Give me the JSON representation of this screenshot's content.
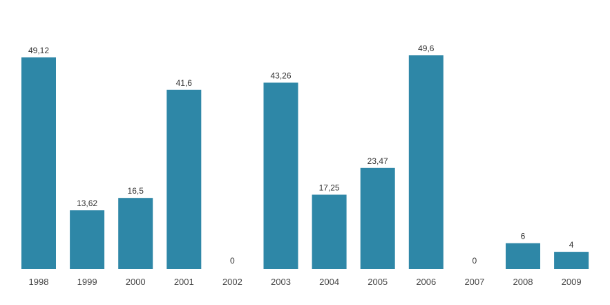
{
  "chart_data": {
    "type": "bar",
    "categories": [
      "1998",
      "1999",
      "2000",
      "2001",
      "2002",
      "2003",
      "2004",
      "2005",
      "2006",
      "2007",
      "2008",
      "2009"
    ],
    "values": [
      49.12,
      13.62,
      16.5,
      41.6,
      0,
      43.26,
      17.25,
      23.47,
      49.6,
      0,
      6,
      4
    ],
    "value_labels": [
      "49,12",
      "13,62",
      "16,5",
      "41,6",
      "0",
      "43,26",
      "17,25",
      "23,47",
      "49,6",
      "0",
      "6",
      "4"
    ],
    "ylim": [
      0,
      49.6
    ],
    "grid": false,
    "legend": "none",
    "colors": {
      "bar": "#2e87a7",
      "value_label": "#333333",
      "category_label": "#444444",
      "background": "#ffffff"
    }
  }
}
